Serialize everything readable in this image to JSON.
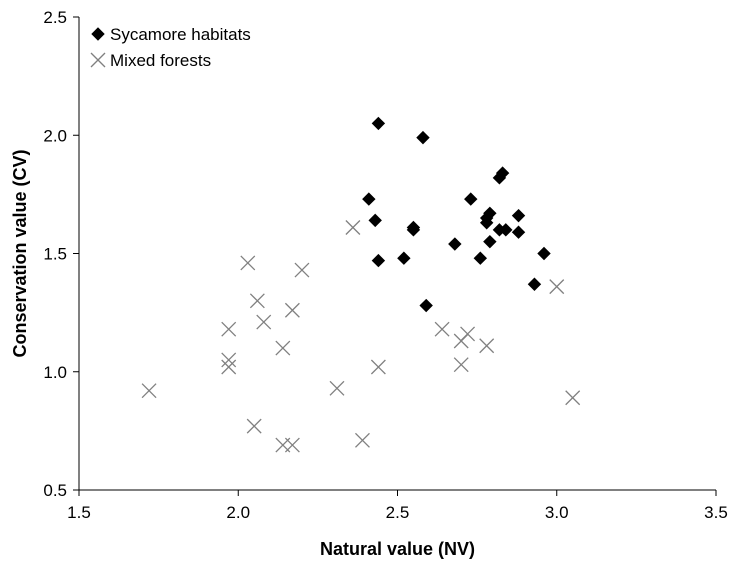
{
  "chart_data": {
    "type": "scatter",
    "xlabel": "Natural value (NV)",
    "ylabel": "Conservation value (CV)",
    "xlim": [
      1.5,
      3.5
    ],
    "ylim": [
      0.5,
      2.5
    ],
    "x_ticks": [
      "1.5",
      "2.0",
      "2.5",
      "3.0",
      "3.5"
    ],
    "y_ticks": [
      "0.5",
      "1.0",
      "1.5",
      "2.0",
      "2.5"
    ],
    "grid": false,
    "legend_position": "top-left",
    "series": [
      {
        "name": "Sycamore habitats",
        "marker": "diamond",
        "color": "#000000",
        "points": [
          [
            2.44,
            2.05
          ],
          [
            2.58,
            1.99
          ],
          [
            2.83,
            1.84
          ],
          [
            2.82,
            1.82
          ],
          [
            2.41,
            1.73
          ],
          [
            2.73,
            1.73
          ],
          [
            2.79,
            1.67
          ],
          [
            2.88,
            1.66
          ],
          [
            2.78,
            1.65
          ],
          [
            2.43,
            1.64
          ],
          [
            2.78,
            1.63
          ],
          [
            2.55,
            1.61
          ],
          [
            2.55,
            1.6
          ],
          [
            2.82,
            1.6
          ],
          [
            2.84,
            1.6
          ],
          [
            2.88,
            1.59
          ],
          [
            2.79,
            1.55
          ],
          [
            2.68,
            1.54
          ],
          [
            2.96,
            1.5
          ],
          [
            2.52,
            1.48
          ],
          [
            2.76,
            1.48
          ],
          [
            2.44,
            1.47
          ],
          [
            2.93,
            1.37
          ],
          [
            2.59,
            1.28
          ]
        ]
      },
      {
        "name": "Mixed forests",
        "marker": "x",
        "color": "#808080",
        "points": [
          [
            2.36,
            1.61
          ],
          [
            2.03,
            1.46
          ],
          [
            2.2,
            1.43
          ],
          [
            3.0,
            1.36
          ],
          [
            2.06,
            1.3
          ],
          [
            2.17,
            1.26
          ],
          [
            2.08,
            1.21
          ],
          [
            2.64,
            1.18
          ],
          [
            1.97,
            1.18
          ],
          [
            2.72,
            1.16
          ],
          [
            2.7,
            1.13
          ],
          [
            2.78,
            1.11
          ],
          [
            2.14,
            1.1
          ],
          [
            1.97,
            1.05
          ],
          [
            1.97,
            1.02
          ],
          [
            2.44,
            1.02
          ],
          [
            2.7,
            1.03
          ],
          [
            2.31,
            0.93
          ],
          [
            1.72,
            0.92
          ],
          [
            3.05,
            0.89
          ],
          [
            2.05,
            0.77
          ],
          [
            2.39,
            0.71
          ],
          [
            2.14,
            0.69
          ],
          [
            2.17,
            0.69
          ]
        ]
      }
    ]
  }
}
